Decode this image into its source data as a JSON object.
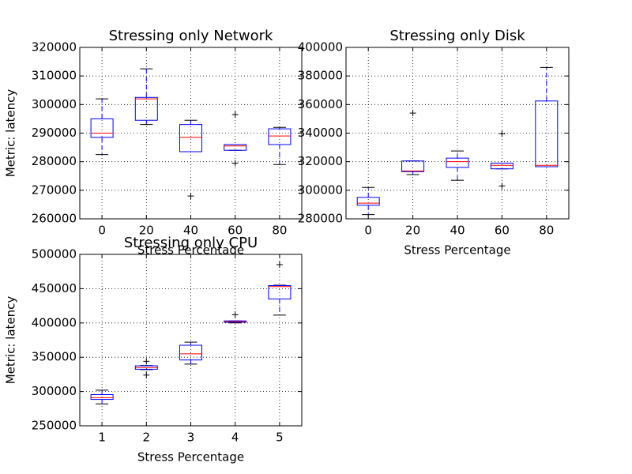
{
  "chart_data": [
    {
      "type": "box",
      "title": "Stressing only Network",
      "xlabel": "Stress Percentage",
      "ylabel": "Metric: latency",
      "categories": [
        "0",
        "20",
        "40",
        "60",
        "80"
      ],
      "boxes": [
        {
          "whisker_low": 282500,
          "q1": 288500,
          "median": 290000,
          "q3": 295000,
          "whisker_high": 302000,
          "outliers": []
        },
        {
          "whisker_low": 293000,
          "q1": 294500,
          "median": 302000,
          "q3": 302500,
          "whisker_high": 312500,
          "outliers": []
        },
        {
          "whisker_low": 283500,
          "q1": 283500,
          "median": 288500,
          "q3": 293000,
          "whisker_high": 294500,
          "outliers": [
            268000
          ]
        },
        {
          "whisker_low": 284000,
          "q1": 284000,
          "median": 285500,
          "q3": 286000,
          "whisker_high": 286000,
          "outliers": [
            296500,
            279500
          ]
        },
        {
          "whisker_low": 279000,
          "q1": 286000,
          "median": 289000,
          "q3": 291500,
          "whisker_high": 292000,
          "outliers": []
        }
      ],
      "ylim": [
        260000,
        320000
      ],
      "yticks": [
        260000,
        270000,
        280000,
        290000,
        300000,
        310000,
        320000
      ],
      "grid": true,
      "color": "#0000ff",
      "median_color": "#ff0000"
    },
    {
      "type": "box",
      "title": "Stressing only Disk",
      "xlabel": "Stress Percentage",
      "categories": [
        "0",
        "20",
        "40",
        "60",
        "80"
      ],
      "boxes": [
        {
          "whisker_low": 283000,
          "q1": 289500,
          "median": 291000,
          "q3": 295000,
          "whisker_high": 302000,
          "outliers": []
        },
        {
          "whisker_low": 311000,
          "q1": 313000,
          "median": 313500,
          "q3": 320500,
          "whisker_high": 320500,
          "outliers": [
            354000
          ]
        },
        {
          "whisker_low": 307000,
          "q1": 316000,
          "median": 320000,
          "q3": 322500,
          "whisker_high": 327500,
          "outliers": []
        },
        {
          "whisker_low": 315000,
          "q1": 315000,
          "median": 317500,
          "q3": 319000,
          "whisker_high": 319000,
          "outliers": [
            339500,
            303000
          ]
        },
        {
          "whisker_low": 316500,
          "q1": 316500,
          "median": 317500,
          "q3": 362500,
          "whisker_high": 386000,
          "outliers": []
        }
      ],
      "ylim": [
        280000,
        400000
      ],
      "yticks": [
        280000,
        300000,
        320000,
        340000,
        360000,
        380000,
        400000
      ],
      "grid": true,
      "color": "#0000ff",
      "median_color": "#ff0000"
    },
    {
      "type": "box",
      "title": "Stressing only CPU",
      "xlabel": "Stress Percentage",
      "ylabel": "Metric: latency",
      "categories": [
        "1",
        "2",
        "3",
        "4",
        "5"
      ],
      "boxes": [
        {
          "whisker_low": 282000,
          "q1": 288500,
          "median": 291000,
          "q3": 295500,
          "whisker_high": 302000,
          "outliers": []
        },
        {
          "whisker_low": 332000,
          "q1": 332500,
          "median": 335000,
          "q3": 337500,
          "whisker_high": 338000,
          "outliers": [
            344000,
            324000
          ]
        },
        {
          "whisker_low": 340000,
          "q1": 346000,
          "median": 355000,
          "q3": 367500,
          "whisker_high": 372000,
          "outliers": []
        },
        {
          "whisker_low": 400000,
          "q1": 401000,
          "median": 402000,
          "q3": 403000,
          "whisker_high": 403000,
          "outliers": [
            412000
          ]
        },
        {
          "whisker_low": 411500,
          "q1": 435000,
          "median": 453000,
          "q3": 454500,
          "whisker_high": 455000,
          "outliers": [
            485000
          ]
        }
      ],
      "ylim": [
        250000,
        500000
      ],
      "yticks": [
        250000,
        300000,
        350000,
        400000,
        450000,
        500000
      ],
      "grid": true,
      "color": "#0000ff",
      "median_color": "#ff0000"
    }
  ]
}
